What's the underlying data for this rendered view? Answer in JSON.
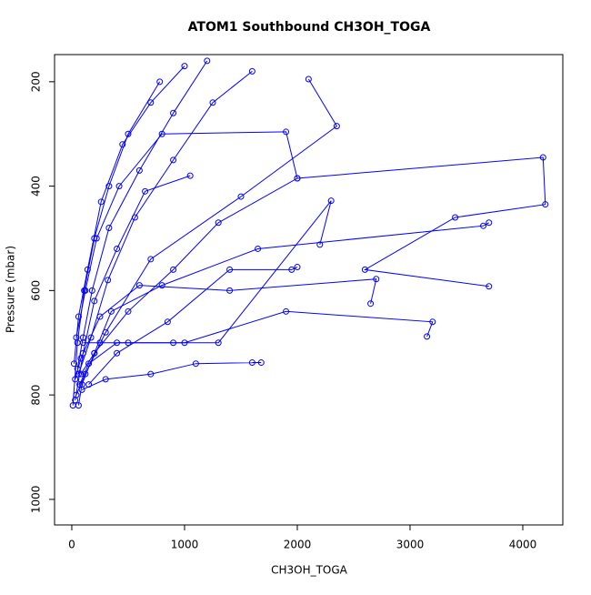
{
  "chart_data": {
    "type": "line",
    "title": "ATOM1 Southbound CH3OH_TOGA",
    "x_label": "CH3OH_TOGA",
    "y_label": "Pressure (mbar)",
    "color": "#0000ff",
    "markers": "circle",
    "y_reversed": true,
    "xlim": [
      -153,
      4355
    ],
    "ylim": [
      148,
      1049
    ],
    "xticks": [
      0,
      1000,
      2000,
      3000,
      4000
    ],
    "yticks": [
      200,
      400,
      600,
      800,
      1000
    ],
    "series": [
      {
        "x": [
          60,
          90,
          200,
          500,
          900,
          1300,
          2000,
          4180,
          4200,
          3400,
          2600,
          3700
        ],
        "y": [
          820,
          780,
          720,
          640,
          560,
          470,
          385,
          345,
          435,
          460,
          560,
          592
        ]
      },
      {
        "x": [
          40,
          120,
          300,
          700,
          1500,
          2350,
          2100
        ],
        "y": [
          800,
          760,
          680,
          540,
          420,
          285,
          195
        ]
      },
      {
        "x": [
          70,
          150,
          400,
          1000,
          1900,
          3200,
          3150
        ],
        "y": [
          780,
          740,
          700,
          700,
          640,
          660,
          688
        ]
      },
      {
        "x": [
          30,
          80,
          250,
          600,
          1400,
          2700,
          2650
        ],
        "y": [
          770,
          730,
          650,
          590,
          600,
          578,
          625
        ]
      },
      {
        "x": [
          80,
          200,
          350,
          800,
          1650,
          3650,
          3700
        ],
        "y": [
          760,
          720,
          640,
          590,
          520,
          476,
          470
        ]
      },
      {
        "x": [
          50,
          100,
          180,
          330,
          600,
          900,
          1200
        ],
        "y": [
          750,
          690,
          600,
          480,
          370,
          260,
          160
        ]
      },
      {
        "x": [
          20,
          60,
          140,
          260,
          450,
          700,
          1000
        ],
        "y": [
          740,
          650,
          560,
          430,
          320,
          240,
          170
        ]
      },
      {
        "x": [
          90,
          300,
          700,
          1100,
          1680,
          1600
        ],
        "y": [
          790,
          770,
          760,
          740,
          738,
          738
        ]
      },
      {
        "x": [
          100,
          250,
          500,
          900,
          1300,
          2300,
          2200
        ],
        "y": [
          700,
          700,
          700,
          700,
          700,
          428,
          512
        ]
      },
      {
        "x": [
          40,
          120,
          220,
          420,
          800,
          1900,
          2000
        ],
        "y": [
          690,
          600,
          500,
          400,
          300,
          296,
          385
        ]
      },
      {
        "x": [
          10,
          50,
          110,
          200,
          330,
          500,
          780
        ],
        "y": [
          820,
          700,
          600,
          500,
          400,
          300,
          200
        ]
      },
      {
        "x": [
          150,
          400,
          850,
          1400,
          1950,
          2000
        ],
        "y": [
          780,
          720,
          660,
          560,
          560,
          555
        ]
      },
      {
        "x": [
          60,
          170,
          320,
          560,
          900,
          1250,
          1600
        ],
        "y": [
          760,
          690,
          580,
          460,
          350,
          240,
          180
        ]
      },
      {
        "x": [
          30,
          100,
          200,
          400,
          650,
          1050
        ],
        "y": [
          810,
          720,
          620,
          520,
          410,
          380
        ]
      }
    ]
  }
}
